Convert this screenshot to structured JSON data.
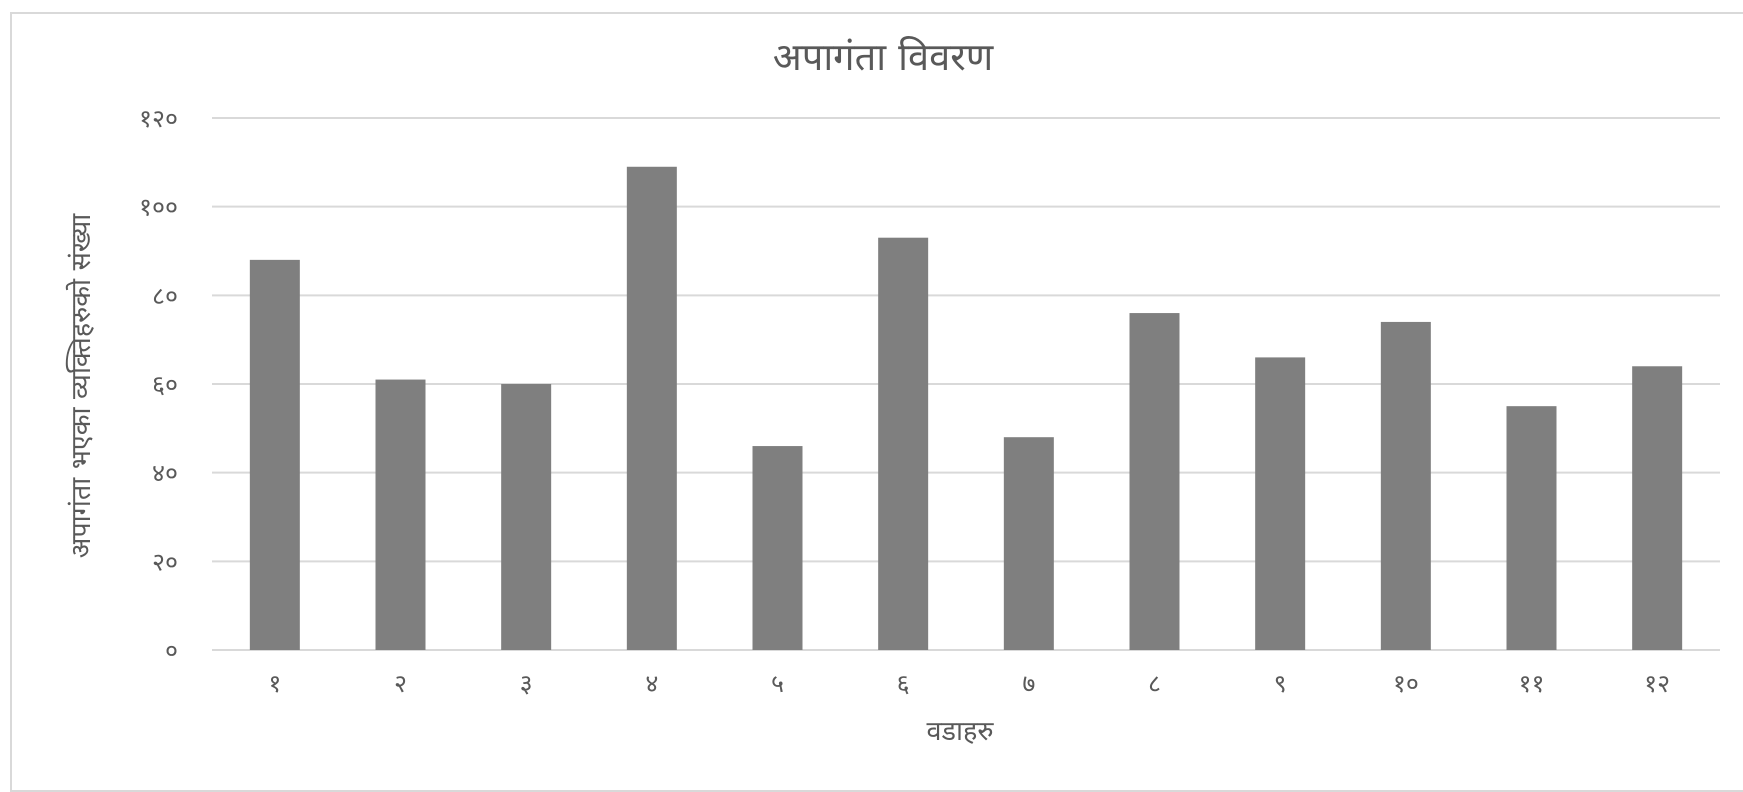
{
  "chart_data": {
    "type": "bar",
    "title": "अपागंता विवरण",
    "xlabel": "वडाहरु",
    "ylabel": "अपागंता भएका व्यक्तिहरुको संख्या",
    "categories": [
      "१",
      "२",
      "३",
      "४",
      "५",
      "६",
      "७",
      "८",
      "९",
      "१०",
      "११",
      "१२"
    ],
    "series": [
      {
        "values": [
          88,
          61,
          60,
          109,
          46,
          93,
          48,
          76,
          66,
          74,
          55,
          64
        ]
      }
    ],
    "ylim": [
      0,
      120
    ],
    "yticks": [
      0,
      20,
      40,
      60,
      80,
      100,
      120
    ],
    "ytick_labels": [
      "०",
      "२०",
      "४०",
      "६०",
      "८०",
      "१००",
      "१२०"
    ],
    "grid": true,
    "legend": "none",
    "colors": {
      "bar": "#7f7f7f",
      "grid": "#d9d9d9",
      "text": "#595959"
    }
  }
}
